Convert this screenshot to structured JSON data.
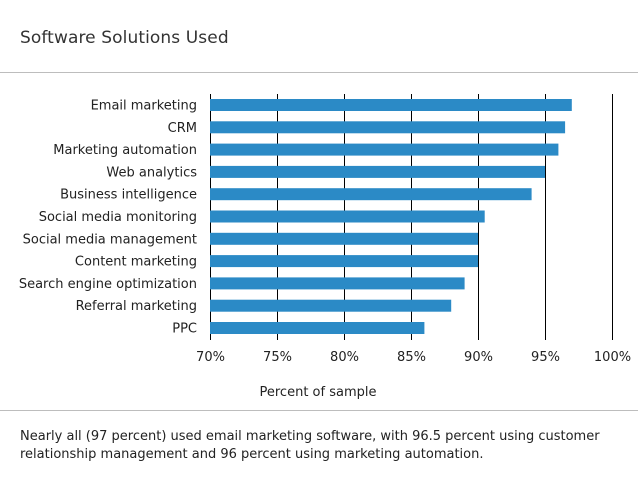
{
  "header": {
    "title": "Software Solutions Used"
  },
  "chart_data": {
    "type": "bar",
    "orientation": "horizontal",
    "title": "Software Solutions Used",
    "categories": [
      "Email marketing",
      "CRM",
      "Marketing automation",
      "Web analytics",
      "Business intelligence",
      "Social media monitoring",
      "Social media management",
      "Content marketing",
      "Search engine optimization",
      "Referral marketing",
      "PPC"
    ],
    "values": [
      97,
      96.5,
      96,
      95,
      94,
      90.5,
      90,
      90,
      89,
      88,
      86
    ],
    "xlim": [
      70,
      100
    ],
    "xticks": [
      70,
      75,
      80,
      85,
      90,
      95,
      100
    ],
    "xtick_labels": [
      "70%",
      "75%",
      "80%",
      "85%",
      "90%",
      "95%",
      "100%"
    ],
    "xlabel": "Percent of sample",
    "ylabel": "",
    "grid": "vertical",
    "bar_color": "#2b8ac6",
    "grid_color": "#000000"
  },
  "footer": {
    "caption": "Nearly all (97 percent) used email marketing software, with 96.5 percent using customer relationship management and 96 percent using marketing automation."
  }
}
